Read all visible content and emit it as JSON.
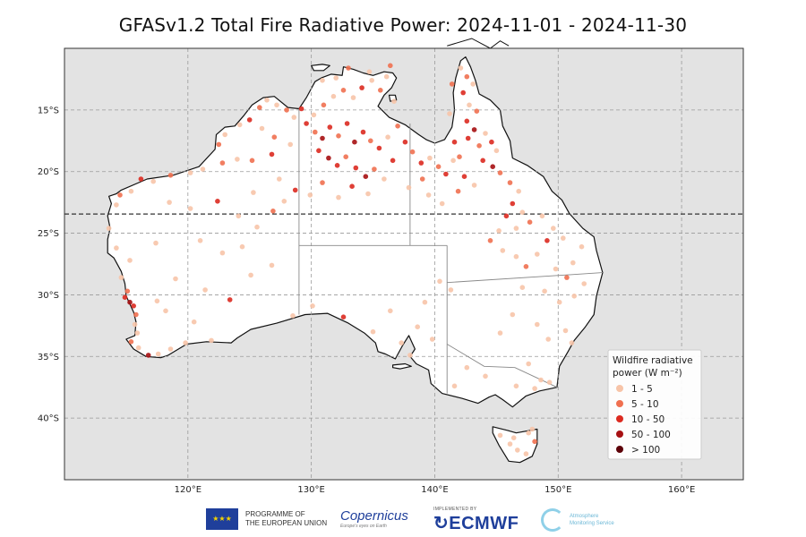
{
  "title": "GFASv1.2 Total Fire Radiative Power: 2024-11-01 - 2024-11-30",
  "axes": {
    "lat_labels": [
      "15°S",
      "20°S",
      "25°S",
      "30°S",
      "35°S",
      "40°S"
    ],
    "lon_labels": [
      "120°E",
      "130°E",
      "140°E",
      "150°E",
      "160°E"
    ]
  },
  "legend": {
    "title_line1": "Wildfire radiative",
    "title_line2": "power (W m⁻²)",
    "items": [
      {
        "label": "1 - 5",
        "color": "#f7c4a8"
      },
      {
        "label": "5 - 10",
        "color": "#f07050"
      },
      {
        "label": "10 - 50",
        "color": "#dc2a20"
      },
      {
        "label": "50 - 100",
        "color": "#a61012"
      },
      {
        "label": "> 100",
        "color": "#5c0008"
      }
    ]
  },
  "colors": {
    "ocean": "#e3e3e3",
    "land": "#ffffff",
    "border": "#111111",
    "grid": "#9a9a9a",
    "tropic": "#333333"
  },
  "footer": {
    "eu_line1": "PROGRAMME OF",
    "eu_line2": "THE EUROPEAN UNION",
    "copernicus": "opernicus",
    "copernicus_c": "C",
    "copernicus_sub": "Europe's eyes on Earth",
    "ecmwf_small": "IMPLEMENTED BY",
    "ecmwf": "ECMWF",
    "cams_line1": "Atmosphere",
    "cams_line2": "Monitoring Service"
  },
  "chart_data": {
    "type": "scatter",
    "title": "GFASv1.2 Total Fire Radiative Power: 2024-11-01 - 2024-11-30",
    "xlim": [
      110,
      165
    ],
    "ylim": [
      -45,
      -10
    ],
    "x_ticks": [
      120,
      130,
      140,
      150,
      160
    ],
    "y_ticks": [
      -15,
      -20,
      -25,
      -30,
      -35,
      -40
    ],
    "tropic_of_capricorn": -23.44,
    "classes": [
      "1 - 5",
      "5 - 10",
      "10 - 50",
      "50 - 100",
      "> 100"
    ],
    "fire_points": [
      [
        123.0,
        -17.0,
        1
      ],
      [
        122.5,
        -17.8,
        2
      ],
      [
        124.2,
        -16.2,
        1
      ],
      [
        125.0,
        -15.8,
        3
      ],
      [
        125.8,
        -14.8,
        2
      ],
      [
        126.4,
        -14.2,
        1
      ],
      [
        127.2,
        -14.6,
        1
      ],
      [
        128.0,
        -15.0,
        2
      ],
      [
        128.6,
        -15.6,
        1
      ],
      [
        129.2,
        -14.9,
        3
      ],
      [
        126.0,
        -16.5,
        1
      ],
      [
        127.0,
        -17.2,
        2
      ],
      [
        128.3,
        -17.8,
        1
      ],
      [
        126.8,
        -18.6,
        3
      ],
      [
        125.2,
        -19.1,
        2
      ],
      [
        124.0,
        -19.0,
        1
      ],
      [
        122.8,
        -19.3,
        2
      ],
      [
        121.2,
        -19.8,
        1
      ],
      [
        120.2,
        -20.1,
        1
      ],
      [
        118.6,
        -20.3,
        2
      ],
      [
        117.2,
        -20.8,
        1
      ],
      [
        116.2,
        -20.6,
        3
      ],
      [
        115.4,
        -21.6,
        1
      ],
      [
        114.5,
        -21.9,
        2
      ],
      [
        114.2,
        -22.7,
        1
      ],
      [
        113.6,
        -24.6,
        1
      ],
      [
        114.2,
        -26.2,
        1
      ],
      [
        115.3,
        -27.2,
        1
      ],
      [
        114.6,
        -28.6,
        1
      ],
      [
        115.1,
        -29.7,
        2
      ],
      [
        114.9,
        -30.2,
        3
      ],
      [
        115.3,
        -30.6,
        4
      ],
      [
        115.6,
        -30.9,
        3
      ],
      [
        115.8,
        -31.6,
        2
      ],
      [
        115.7,
        -32.4,
        1
      ],
      [
        115.9,
        -33.1,
        1
      ],
      [
        115.4,
        -33.8,
        2
      ],
      [
        116.0,
        -34.3,
        1
      ],
      [
        116.8,
        -34.9,
        4
      ],
      [
        117.6,
        -34.8,
        1
      ],
      [
        118.6,
        -34.4,
        1
      ],
      [
        119.8,
        -33.9,
        1
      ],
      [
        121.9,
        -33.7,
        1
      ],
      [
        120.5,
        -32.2,
        1
      ],
      [
        118.2,
        -31.3,
        1
      ],
      [
        117.5,
        -30.5,
        1
      ],
      [
        119.0,
        -28.7,
        1
      ],
      [
        121.4,
        -29.6,
        1
      ],
      [
        123.4,
        -30.4,
        3
      ],
      [
        125.1,
        -28.4,
        1
      ],
      [
        118.5,
        -22.5,
        1
      ],
      [
        120.2,
        -23.0,
        1
      ],
      [
        122.4,
        -22.4,
        3
      ],
      [
        124.1,
        -23.6,
        1
      ],
      [
        125.6,
        -24.5,
        1
      ],
      [
        126.9,
        -23.2,
        2
      ],
      [
        127.8,
        -22.4,
        1
      ],
      [
        128.7,
        -21.5,
        3
      ],
      [
        127.4,
        -20.6,
        1
      ],
      [
        125.3,
        -21.7,
        1
      ],
      [
        121.0,
        -25.6,
        1
      ],
      [
        122.8,
        -26.6,
        1
      ],
      [
        124.4,
        -26.1,
        1
      ],
      [
        126.8,
        -27.6,
        1
      ],
      [
        117.4,
        -25.8,
        1
      ],
      [
        129.6,
        -16.1,
        3
      ],
      [
        130.3,
        -16.8,
        2
      ],
      [
        130.9,
        -17.3,
        4
      ],
      [
        131.5,
        -16.4,
        3
      ],
      [
        132.2,
        -17.1,
        2
      ],
      [
        132.9,
        -16.1,
        3
      ],
      [
        133.5,
        -17.6,
        4
      ],
      [
        134.2,
        -16.8,
        3
      ],
      [
        134.8,
        -17.5,
        2
      ],
      [
        135.5,
        -18.1,
        3
      ],
      [
        136.2,
        -17.2,
        1
      ],
      [
        130.6,
        -18.3,
        3
      ],
      [
        131.4,
        -18.9,
        4
      ],
      [
        132.1,
        -19.5,
        3
      ],
      [
        132.8,
        -18.8,
        2
      ],
      [
        133.6,
        -19.7,
        3
      ],
      [
        134.4,
        -20.4,
        4
      ],
      [
        135.1,
        -19.8,
        2
      ],
      [
        135.9,
        -20.6,
        1
      ],
      [
        136.6,
        -19.1,
        3
      ],
      [
        130.2,
        -15.4,
        1
      ],
      [
        131.0,
        -14.6,
        2
      ],
      [
        131.8,
        -13.9,
        1
      ],
      [
        132.6,
        -13.4,
        2
      ],
      [
        133.4,
        -14.0,
        1
      ],
      [
        134.1,
        -13.2,
        3
      ],
      [
        134.9,
        -12.6,
        1
      ],
      [
        135.6,
        -13.4,
        2
      ],
      [
        136.1,
        -12.3,
        1
      ],
      [
        136.7,
        -14.3,
        1
      ],
      [
        132.0,
        -12.4,
        1
      ],
      [
        130.9,
        -12.6,
        1
      ],
      [
        133.0,
        -11.6,
        2
      ],
      [
        134.7,
        -11.9,
        1
      ],
      [
        136.4,
        -11.4,
        2
      ],
      [
        137.0,
        -16.3,
        2
      ],
      [
        137.6,
        -17.6,
        3
      ],
      [
        138.2,
        -18.4,
        2
      ],
      [
        138.9,
        -19.3,
        3
      ],
      [
        139.6,
        -18.9,
        1
      ],
      [
        140.3,
        -19.6,
        2
      ],
      [
        140.9,
        -20.2,
        3
      ],
      [
        141.5,
        -19.1,
        1
      ],
      [
        139.0,
        -20.6,
        2
      ],
      [
        137.9,
        -21.3,
        1
      ],
      [
        133.3,
        -21.2,
        3
      ],
      [
        134.6,
        -21.8,
        1
      ],
      [
        132.2,
        -22.1,
        1
      ],
      [
        130.9,
        -20.9,
        2
      ],
      [
        129.9,
        -21.9,
        1
      ],
      [
        142.1,
        -11.6,
        1
      ],
      [
        142.6,
        -12.3,
        2
      ],
      [
        142.3,
        -13.6,
        3
      ],
      [
        142.8,
        -14.6,
        1
      ],
      [
        143.4,
        -15.1,
        2
      ],
      [
        142.6,
        -15.9,
        3
      ],
      [
        143.2,
        -16.6,
        4
      ],
      [
        142.7,
        -17.3,
        3
      ],
      [
        143.6,
        -17.9,
        2
      ],
      [
        144.1,
        -16.9,
        1
      ],
      [
        144.6,
        -17.6,
        3
      ],
      [
        145.0,
        -18.3,
        1
      ],
      [
        143.9,
        -19.1,
        3
      ],
      [
        144.7,
        -19.6,
        4
      ],
      [
        145.3,
        -20.1,
        2
      ],
      [
        142.0,
        -18.8,
        2
      ],
      [
        141.6,
        -17.6,
        3
      ],
      [
        141.2,
        -15.3,
        1
      ],
      [
        141.4,
        -12.9,
        2
      ],
      [
        143.1,
        -12.9,
        1
      ],
      [
        142.4,
        -20.4,
        3
      ],
      [
        143.2,
        -21.1,
        1
      ],
      [
        141.9,
        -21.6,
        2
      ],
      [
        140.6,
        -22.6,
        1
      ],
      [
        139.5,
        -21.9,
        1
      ],
      [
        146.1,
        -20.9,
        2
      ],
      [
        146.8,
        -21.6,
        1
      ],
      [
        146.3,
        -22.6,
        3
      ],
      [
        147.1,
        -23.3,
        1
      ],
      [
        147.7,
        -24.1,
        2
      ],
      [
        146.6,
        -24.6,
        1
      ],
      [
        145.8,
        -23.6,
        3
      ],
      [
        145.2,
        -24.8,
        1
      ],
      [
        144.5,
        -25.6,
        2
      ],
      [
        145.5,
        -26.4,
        1
      ],
      [
        146.6,
        -26.9,
        1
      ],
      [
        147.4,
        -27.7,
        2
      ],
      [
        148.3,
        -26.7,
        1
      ],
      [
        149.1,
        -25.6,
        3
      ],
      [
        149.6,
        -24.6,
        1
      ],
      [
        148.7,
        -23.6,
        1
      ],
      [
        149.8,
        -27.9,
        1
      ],
      [
        150.7,
        -28.6,
        2
      ],
      [
        151.2,
        -27.4,
        1
      ],
      [
        151.9,
        -26.1,
        1
      ],
      [
        150.4,
        -25.4,
        1
      ],
      [
        148.9,
        -29.7,
        1
      ],
      [
        150.1,
        -30.6,
        1
      ],
      [
        151.3,
        -30.1,
        1
      ],
      [
        152.1,
        -29.1,
        1
      ],
      [
        147.1,
        -29.4,
        1
      ],
      [
        148.3,
        -32.4,
        1
      ],
      [
        149.2,
        -33.6,
        1
      ],
      [
        150.6,
        -32.9,
        1
      ],
      [
        151.1,
        -33.9,
        1
      ],
      [
        146.3,
        -31.6,
        1
      ],
      [
        145.3,
        -33.1,
        1
      ],
      [
        147.6,
        -35.6,
        1
      ],
      [
        148.6,
        -36.9,
        1
      ],
      [
        146.6,
        -37.4,
        1
      ],
      [
        144.1,
        -36.6,
        1
      ],
      [
        142.6,
        -35.9,
        1
      ],
      [
        141.6,
        -37.4,
        1
      ],
      [
        139.8,
        -33.6,
        1
      ],
      [
        138.6,
        -32.6,
        1
      ],
      [
        137.3,
        -33.9,
        1
      ],
      [
        136.4,
        -31.3,
        1
      ],
      [
        139.2,
        -30.6,
        1
      ],
      [
        140.4,
        -28.9,
        1
      ],
      [
        141.3,
        -29.6,
        1
      ],
      [
        138.0,
        -34.9,
        1
      ],
      [
        135.0,
        -33.0,
        1
      ],
      [
        132.6,
        -31.8,
        3
      ],
      [
        130.1,
        -30.9,
        1
      ],
      [
        128.5,
        -31.7,
        1
      ],
      [
        146.4,
        -41.6,
        1
      ],
      [
        147.6,
        -41.2,
        1
      ],
      [
        146.7,
        -42.6,
        1
      ],
      [
        147.4,
        -42.9,
        1
      ],
      [
        148.1,
        -41.9,
        2
      ],
      [
        146.1,
        -42.1,
        1
      ],
      [
        145.3,
        -41.4,
        1
      ],
      [
        147.9,
        -40.9,
        1
      ],
      [
        149.3,
        -37.1,
        1
      ],
      [
        148.1,
        -37.6,
        1
      ]
    ]
  }
}
